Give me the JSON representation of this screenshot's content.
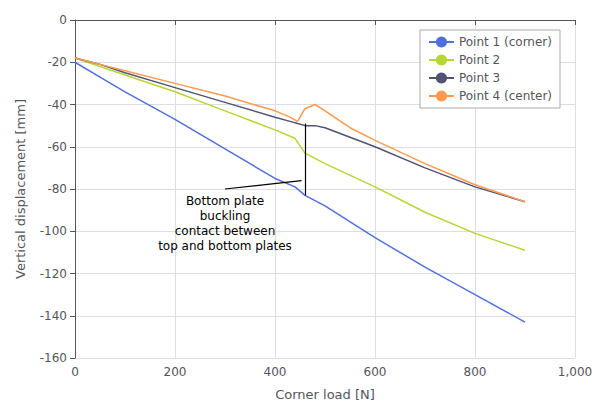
{
  "chart_data": {
    "type": "line",
    "xlabel": "Corner load [N]",
    "ylabel": "Vertical displacement [mm]",
    "xlim": [
      0,
      1000
    ],
    "ylim": [
      -160,
      0
    ],
    "xticks": [
      0,
      200,
      400,
      600,
      800,
      1000
    ],
    "yticks": [
      0,
      -20,
      -40,
      -60,
      -80,
      -100,
      -120,
      -140,
      -160
    ],
    "grid": true,
    "legend": "upper right",
    "series": [
      {
        "name": "Point 1 (corner)",
        "x": [
          0,
          50,
          100,
          200,
          300,
          400,
          440,
          460,
          500,
          600,
          700,
          800,
          900
        ],
        "values": [
          -20,
          -27,
          -34,
          -47,
          -61,
          -75,
          -79,
          -83,
          -88,
          -103,
          -117,
          -130,
          -143
        ]
      },
      {
        "name": "Point 2",
        "x": [
          0,
          50,
          100,
          200,
          300,
          400,
          440,
          460,
          500,
          600,
          700,
          800,
          900
        ],
        "values": [
          -18,
          -22,
          -26,
          -34,
          -43,
          -52,
          -56,
          -63,
          -68,
          -79,
          -91,
          -101,
          -109
        ]
      },
      {
        "name": "Point 3",
        "x": [
          0,
          50,
          100,
          200,
          300,
          400,
          430,
          445,
          460,
          480,
          500,
          600,
          700,
          800,
          900
        ],
        "values": [
          -18,
          -21,
          -25,
          -32,
          -39,
          -46,
          -48,
          -49,
          -50,
          -50,
          -51,
          -60,
          -70,
          -79,
          -86
        ]
      },
      {
        "name": "Point 4 (center)",
        "x": [
          0,
          50,
          100,
          200,
          300,
          400,
          430,
          445,
          460,
          480,
          500,
          550,
          600,
          700,
          800,
          900
        ],
        "values": [
          -18,
          -21,
          -24,
          -30,
          -36,
          -43,
          -46,
          -48,
          -42,
          -40,
          -43,
          -51,
          -57,
          -68,
          -78,
          -86
        ]
      }
    ],
    "vlines": [
      {
        "x": 460,
        "y_top": -49,
        "y_bottom": -83
      }
    ],
    "annotations": [
      {
        "text": "Bottom plate\nbuckling\ncontact between\ntop and bottom plates",
        "x": 300,
        "y": -80,
        "arrow_x": 453,
        "arrow_y": -76
      }
    ]
  }
}
